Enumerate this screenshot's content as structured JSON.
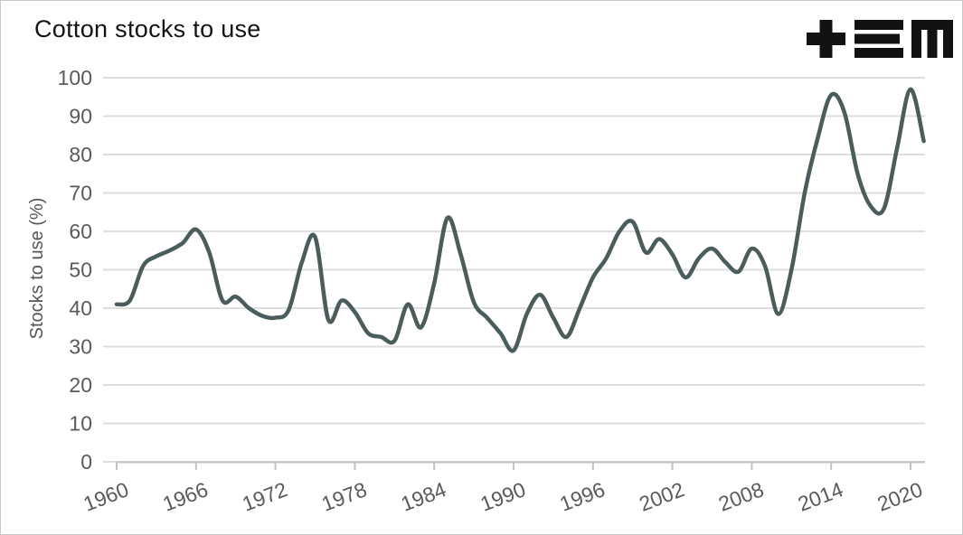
{
  "header": {
    "title": "Cotton stocks to use",
    "logo_color": "#121212"
  },
  "chart_data": {
    "type": "line",
    "title": "Cotton stocks to use",
    "xlabel": "",
    "ylabel": "Stocks to use (%)",
    "x": [
      1960,
      1961,
      1962,
      1963,
      1964,
      1965,
      1966,
      1967,
      1968,
      1969,
      1970,
      1971,
      1972,
      1973,
      1974,
      1975,
      1976,
      1977,
      1978,
      1979,
      1980,
      1981,
      1982,
      1983,
      1984,
      1985,
      1986,
      1987,
      1988,
      1989,
      1990,
      1991,
      1992,
      1993,
      1994,
      1995,
      1996,
      1997,
      1998,
      1999,
      2000,
      2001,
      2002,
      2003,
      2004,
      2005,
      2006,
      2007,
      2008,
      2009,
      2010,
      2011,
      2012,
      2013,
      2014,
      2015,
      2016,
      2017,
      2018,
      2019,
      2020,
      2021
    ],
    "series": [
      {
        "name": "Cotton stocks to use",
        "values": [
          41,
          42,
          51,
          53.5,
          55,
          57,
          60.5,
          54.5,
          42,
          43,
          40,
          38,
          37.5,
          39.5,
          52,
          58.5,
          37,
          42,
          39,
          33.5,
          32.5,
          31.5,
          41,
          35,
          46.5,
          63.5,
          54,
          41.5,
          37.5,
          33.5,
          29,
          38.5,
          43.5,
          37.5,
          32.5,
          40,
          48,
          53,
          60,
          62.5,
          54.5,
          58,
          54,
          48,
          53,
          55.5,
          52,
          49.5,
          55.5,
          51,
          38.5,
          50,
          70,
          84.5,
          95.5,
          91,
          75,
          66.5,
          66,
          82,
          97,
          83.5
        ]
      }
    ],
    "ylim": [
      0,
      100
    ],
    "ytick_step": 10,
    "yticks": [
      0,
      10,
      20,
      30,
      40,
      50,
      60,
      70,
      80,
      90,
      100
    ],
    "xticks": [
      1960,
      1966,
      1972,
      1978,
      1984,
      1990,
      1996,
      2002,
      2008,
      2014,
      2020
    ],
    "grid": "horizontal",
    "legend_position": "none",
    "line_color": "#4a5c5c",
    "grid_color": "#dedede",
    "axis_color": "#c2c2c2",
    "tick_label_color": "#5a5a5a",
    "axis_title_color": "#555555"
  }
}
